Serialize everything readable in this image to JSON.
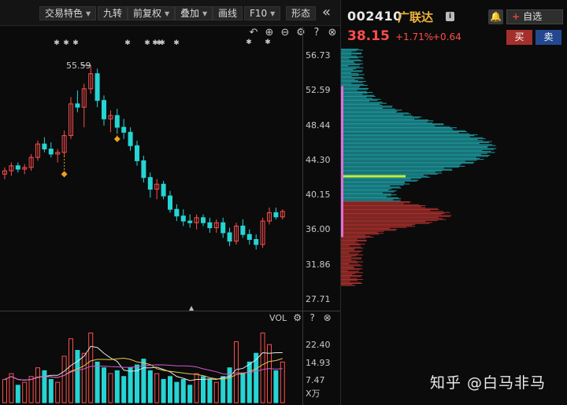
{
  "toolbar": {
    "items": [
      {
        "label": "交易特色",
        "dropdown": true
      },
      {
        "label": "九转",
        "dropdown": false
      },
      {
        "label": "前复权",
        "dropdown": true
      },
      {
        "label": "叠加",
        "dropdown": true
      },
      {
        "label": "画线",
        "dropdown": false
      },
      {
        "label": "F10",
        "dropdown": true
      },
      {
        "label": "形态",
        "dropdown": false
      }
    ],
    "collapse_icon": "double-chevron-left-icon"
  },
  "chart_tools": [
    "undo-icon",
    "zoom-in-icon",
    "zoom-out-icon",
    "settings-icon",
    "help-icon",
    "close-icon"
  ],
  "quote": {
    "code": "002410",
    "name": "广联达",
    "info_badge": "i",
    "price": "38.15",
    "change_pct": "+1.71%",
    "change_abs": "+0.64",
    "add_watch_label": "自选",
    "buy_label": "买",
    "sell_label": "卖",
    "up_color": "#ff4d4d",
    "down_color": "#26d4d4"
  },
  "chart": {
    "high_label": "55.59",
    "y_ticks": [
      "56.73",
      "52.59",
      "48.44",
      "44.30",
      "40.15",
      "36.00",
      "31.86",
      "27.71"
    ]
  },
  "volume": {
    "title": "VOL",
    "y_ticks": [
      "22.40",
      "14.93",
      "7.47"
    ],
    "unit": "X万"
  },
  "watermark": "知乎 @白马非马",
  "chart_data": {
    "type": "candlestick",
    "ylim": [
      27.71,
      56.73
    ],
    "y_ticks": [
      56.73,
      52.59,
      48.44,
      44.3,
      40.15,
      36.0,
      31.86,
      27.71
    ],
    "candles": [
      [
        42.6,
        43.4,
        42.0,
        43.0
      ],
      [
        43.0,
        44.0,
        42.4,
        43.6
      ],
      [
        43.6,
        44.0,
        42.8,
        43.2
      ],
      [
        43.2,
        43.8,
        42.6,
        43.4
      ],
      [
        43.4,
        45.0,
        43.0,
        44.6
      ],
      [
        44.6,
        46.6,
        44.2,
        46.2
      ],
      [
        46.2,
        47.0,
        45.2,
        45.6
      ],
      [
        45.6,
        46.4,
        44.6,
        45.0
      ],
      [
        45.0,
        45.6,
        44.0,
        45.2
      ],
      [
        45.2,
        47.8,
        44.8,
        47.2
      ],
      [
        47.2,
        51.8,
        46.8,
        51.0
      ],
      [
        51.0,
        52.6,
        50.0,
        50.6
      ],
      [
        50.6,
        53.4,
        48.2,
        52.8
      ],
      [
        52.8,
        55.6,
        52.2,
        54.6
      ],
      [
        54.6,
        55.2,
        50.6,
        51.4
      ],
      [
        51.4,
        52.0,
        48.4,
        49.2
      ],
      [
        49.2,
        50.2,
        47.6,
        49.6
      ],
      [
        49.6,
        50.4,
        47.6,
        48.2
      ],
      [
        48.2,
        49.2,
        46.8,
        47.6
      ],
      [
        47.6,
        48.2,
        45.4,
        46.0
      ],
      [
        46.0,
        46.6,
        43.6,
        44.2
      ],
      [
        44.2,
        44.8,
        41.6,
        42.2
      ],
      [
        42.2,
        42.8,
        39.8,
        40.8
      ],
      [
        40.8,
        42.0,
        39.6,
        41.4
      ],
      [
        41.4,
        41.8,
        39.6,
        40.0
      ],
      [
        40.0,
        40.6,
        38.0,
        38.4
      ],
      [
        38.4,
        39.0,
        37.0,
        37.6
      ],
      [
        37.6,
        38.4,
        36.4,
        37.0
      ],
      [
        37.0,
        37.8,
        36.2,
        36.8
      ],
      [
        36.8,
        37.8,
        36.0,
        37.4
      ],
      [
        37.4,
        37.8,
        36.4,
        36.8
      ],
      [
        36.8,
        37.4,
        35.6,
        36.2
      ],
      [
        36.2,
        37.2,
        35.6,
        36.8
      ],
      [
        36.8,
        37.4,
        35.0,
        35.6
      ],
      [
        35.6,
        36.2,
        34.0,
        34.6
      ],
      [
        34.6,
        36.8,
        34.2,
        36.4
      ],
      [
        36.4,
        37.2,
        35.0,
        35.4
      ],
      [
        35.4,
        36.0,
        34.2,
        34.8
      ],
      [
        34.8,
        35.4,
        33.6,
        34.2
      ],
      [
        34.2,
        37.4,
        33.8,
        37.0
      ],
      [
        37.0,
        38.6,
        36.6,
        38.0
      ],
      [
        38.0,
        38.6,
        37.2,
        37.5
      ],
      [
        37.5,
        38.4,
        37.2,
        38.15
      ]
    ],
    "volume": [
      8,
      10,
      6,
      7,
      9,
      12,
      11,
      8,
      7,
      16,
      22,
      18,
      17,
      24,
      14,
      12,
      10,
      11,
      9,
      12,
      13,
      15,
      11,
      10,
      8,
      9,
      7,
      8,
      6,
      10,
      9,
      8,
      7,
      9,
      12,
      21,
      10,
      14,
      17,
      24,
      20,
      11,
      14
    ],
    "volume_ylim": [
      0,
      26
    ],
    "marker_points": [
      {
        "index": 9,
        "value": 42.6
      },
      {
        "index": 17,
        "value": 46.8
      }
    ],
    "price_profile": {
      "current_price": 38.15,
      "poc_price": 41.2
    }
  }
}
